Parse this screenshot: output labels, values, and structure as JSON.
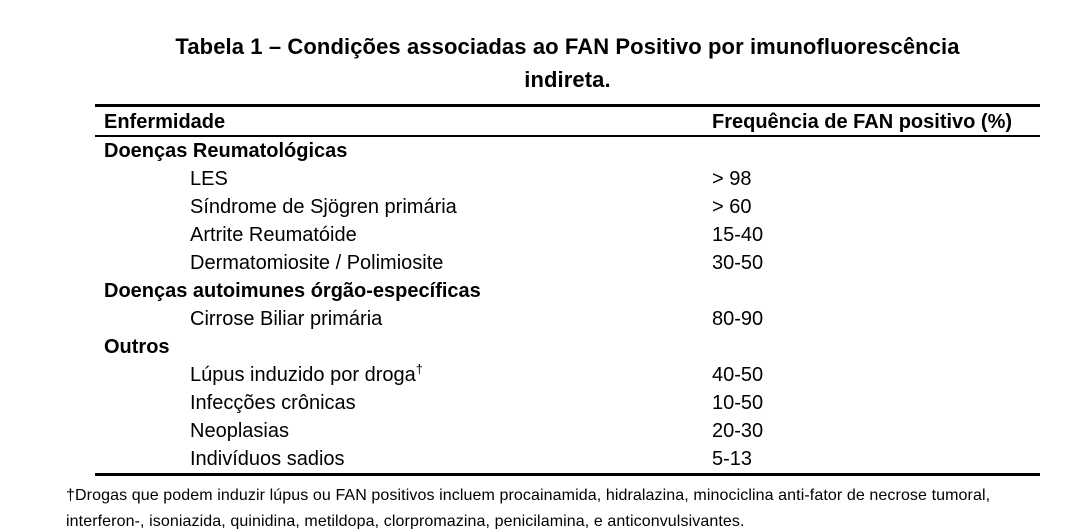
{
  "title": {
    "line1": "Tabela 1 – Condições associadas ao FAN Positivo por imunofluorescência",
    "line2": "indireta."
  },
  "table": {
    "columns": {
      "col1": "Enfermidade",
      "col2": "Frequência de FAN positivo (%)"
    },
    "rows": [
      {
        "type": "section",
        "label": "Doenças Reumatológicas",
        "value": ""
      },
      {
        "type": "item",
        "label": "LES",
        "value": "> 98"
      },
      {
        "type": "item",
        "label": "Síndrome de Sjögren primária",
        "value": "> 60"
      },
      {
        "type": "item",
        "label": "Artrite Reumatóide",
        "value": "15-40"
      },
      {
        "type": "item",
        "label": "Dermatomiosite / Polimiosite",
        "value": "30-50"
      },
      {
        "type": "section",
        "label": "Doenças autoimunes órgão-específicas",
        "value": ""
      },
      {
        "type": "item",
        "label": "Cirrose Biliar primária",
        "value": "80-90"
      },
      {
        "type": "section",
        "label": "Outros",
        "value": ""
      },
      {
        "type": "item",
        "label": "Lúpus induzido por droga",
        "superscript": "†",
        "value": "40-50"
      },
      {
        "type": "item",
        "label": "Infecções crônicas",
        "value": "10-50"
      },
      {
        "type": "item",
        "label": "Neoplasias",
        "value": "20-30"
      },
      {
        "type": "item",
        "label": "Indivíduos sadios",
        "value": "5-13"
      }
    ]
  },
  "footnote": {
    "line1": "†Drogas que podem induzir lúpus ou FAN positivos incluem procainamida, hidralazina, minociclina anti-fator de necrose tumoral,",
    "line2": "interferon-, isoniazida, quinidina, metildopa, clorpromazina, penicilamina, e anticonvulsivantes."
  },
  "colors": {
    "text": "#000000",
    "background": "#ffffff",
    "rule": "#000000"
  }
}
